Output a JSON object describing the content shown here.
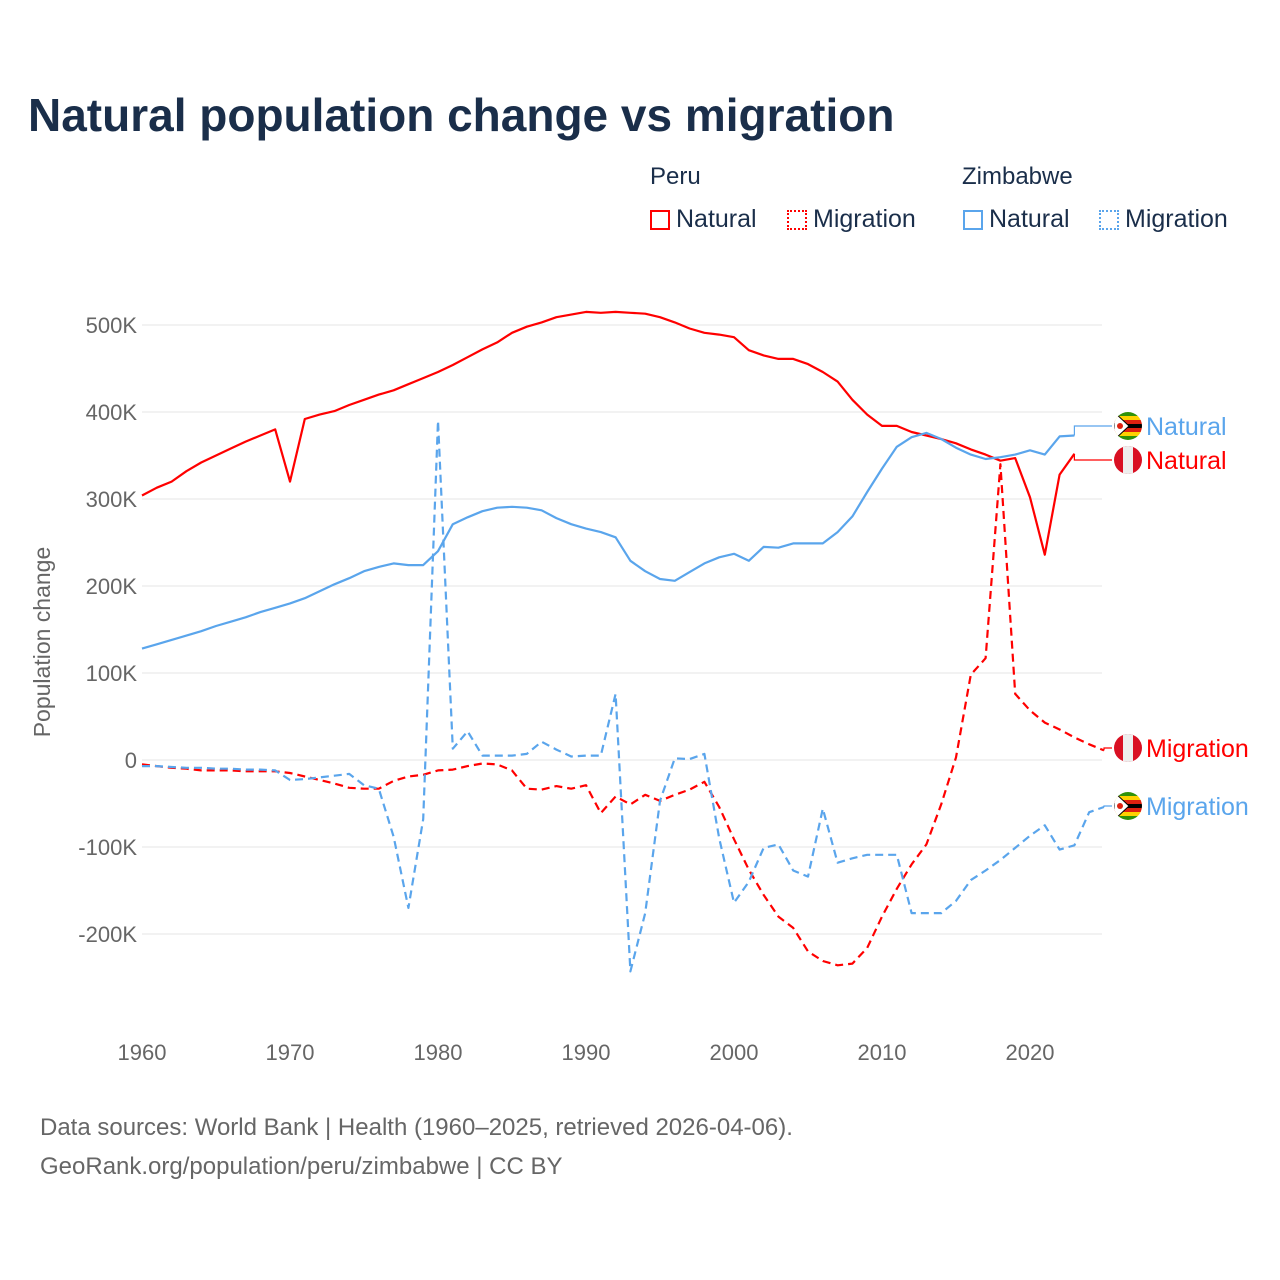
{
  "title": "Natural population change vs migration",
  "legend": {
    "groups": [
      {
        "name": "Peru",
        "items": [
          {
            "label": "Natural",
            "style": "solid"
          },
          {
            "label": "Migration",
            "style": "dotted"
          }
        ],
        "color": "#ff0000"
      },
      {
        "name": "Zimbabwe",
        "items": [
          {
            "label": "Natural",
            "style": "solid"
          },
          {
            "label": "Migration",
            "style": "dotted"
          }
        ],
        "color": "#5aa5ec"
      }
    ]
  },
  "footer": {
    "line1": "Data sources: World Bank | Health (1960–2025, retrieved 2026-04-06).",
    "line2": "GeoRank.org/population/peru/zimbabwe | CC BY"
  },
  "chart_data": {
    "type": "line",
    "title": "Natural population change vs migration",
    "xlabel": "",
    "ylabel": "Population change",
    "xlim": [
      1960,
      2025
    ],
    "ylim": [
      -300000,
      500000
    ],
    "x_ticks": [
      1960,
      1970,
      1980,
      1990,
      2000,
      2010,
      2020
    ],
    "y_ticks": [
      {
        "v": -200000,
        "label": "-200K"
      },
      {
        "v": -100000,
        "label": "-100K"
      },
      {
        "v": 0,
        "label": "0"
      },
      {
        "v": 100000,
        "label": "100K"
      },
      {
        "v": 200000,
        "label": "200K"
      },
      {
        "v": 300000,
        "label": "300K"
      },
      {
        "v": 400000,
        "label": "400K"
      },
      {
        "v": 500000,
        "label": "500K"
      }
    ],
    "grid": true,
    "legend_position": "top-right",
    "series": [
      {
        "name": "Peru Natural",
        "end_label": "Natural",
        "country": "peru",
        "color": "#ff0000",
        "dash": false,
        "start": 1960,
        "values_k": [
          304,
          313,
          320,
          332,
          342,
          350,
          358,
          366,
          373,
          380,
          320,
          392,
          397,
          401,
          408,
          414,
          420,
          425,
          432,
          439,
          446,
          454,
          463,
          472,
          480,
          491,
          498,
          503,
          509,
          512,
          515,
          514,
          515,
          514,
          513,
          509,
          503,
          496,
          491,
          489,
          486,
          471,
          465,
          461,
          461,
          455,
          446,
          435,
          414,
          397,
          384,
          384,
          377,
          373,
          369,
          364,
          357,
          351,
          344,
          347,
          302,
          236,
          328,
          352
        ]
      },
      {
        "name": "Zimbabwe Natural",
        "end_label": "Natural",
        "country": "zimbabwe",
        "color": "#5aa5ec",
        "dash": false,
        "start": 1960,
        "values_k": [
          128,
          133,
          138,
          143,
          148,
          154,
          159,
          164,
          170,
          175,
          180,
          186,
          194,
          202,
          209,
          217,
          222,
          226,
          224,
          224,
          240,
          271,
          279,
          286,
          290,
          291,
          290,
          287,
          278,
          271,
          266,
          262,
          256,
          229,
          217,
          208,
          206,
          216,
          226,
          233,
          237,
          229,
          245,
          244,
          249,
          249,
          249,
          262,
          280,
          308,
          335,
          360,
          371,
          376,
          369,
          359,
          351,
          346,
          348,
          351,
          356,
          351,
          372,
          373
        ]
      },
      {
        "name": "Peru Migration",
        "end_label": "Migration",
        "country": "peru",
        "color": "#ff0000",
        "dash": true,
        "start": 1960,
        "values_k": [
          -5,
          -7,
          -9,
          -10,
          -12,
          -12,
          -12,
          -13,
          -13,
          -13,
          -15,
          -19,
          -23,
          -27,
          -32,
          -33,
          -33,
          -24,
          -19,
          -17,
          -12,
          -11,
          -7,
          -4,
          -5,
          -12,
          -33,
          -34,
          -30,
          -33,
          -29,
          -61,
          -42,
          -51,
          -40,
          -47,
          -40,
          -34,
          -25,
          -54,
          -91,
          -126,
          -155,
          -180,
          -193,
          -220,
          -231,
          -236,
          -234,
          -216,
          -180,
          -148,
          -120,
          -97,
          -51,
          3,
          98,
          117,
          340,
          76,
          57,
          43,
          35,
          26,
          18,
          11
        ]
      },
      {
        "name": "Zimbabwe Migration",
        "end_label": "Migration",
        "country": "zimbabwe",
        "color": "#5aa5ec",
        "dash": true,
        "start": 1960,
        "values_k": [
          -7,
          -7,
          -8,
          -9,
          -9,
          -10,
          -10,
          -11,
          -11,
          -12,
          -23,
          -22,
          -20,
          -18,
          -16,
          -29,
          -33,
          -88,
          -170,
          -68,
          390,
          13,
          33,
          5,
          5,
          5,
          7,
          21,
          12,
          4,
          5,
          5,
          76,
          -243,
          -176,
          -47,
          2,
          1,
          7,
          -90,
          -164,
          -140,
          -101,
          -97,
          -127,
          -134,
          -56,
          -118,
          -113,
          -109,
          -109,
          -109,
          -176,
          -176,
          -176,
          -162,
          -138,
          -127,
          -115,
          -101,
          -87,
          -75,
          -103,
          -98,
          -60,
          -54
        ]
      }
    ]
  }
}
